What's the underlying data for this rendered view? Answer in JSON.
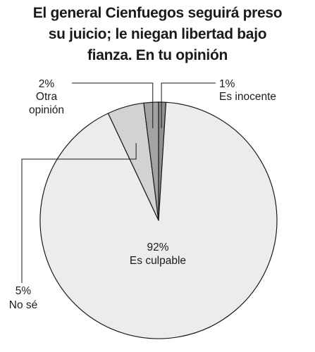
{
  "title_lines": [
    "El general Cienfuegos seguirá preso",
    "su juicio; le niegan libertad bajo",
    "fianza. En tu opinión"
  ],
  "chart_data": {
    "type": "pie",
    "title": "El general Cienfuegos seguirá preso su juicio; le niegan libertad bajo fianza. En tu opinión",
    "slices": [
      {
        "label": "Es inocente",
        "value": 1,
        "value_label": "1%",
        "color": "#8f8f8f"
      },
      {
        "label": "Es culpable",
        "value": 92,
        "value_label": "92%",
        "color": "#ececec"
      },
      {
        "label": "No sé",
        "value": 5,
        "value_label": "5%",
        "color": "#d2d2d2"
      },
      {
        "label": "Otra opinión",
        "value": 2,
        "value_label": "2%",
        "color": "#a3a3a3"
      }
    ]
  }
}
